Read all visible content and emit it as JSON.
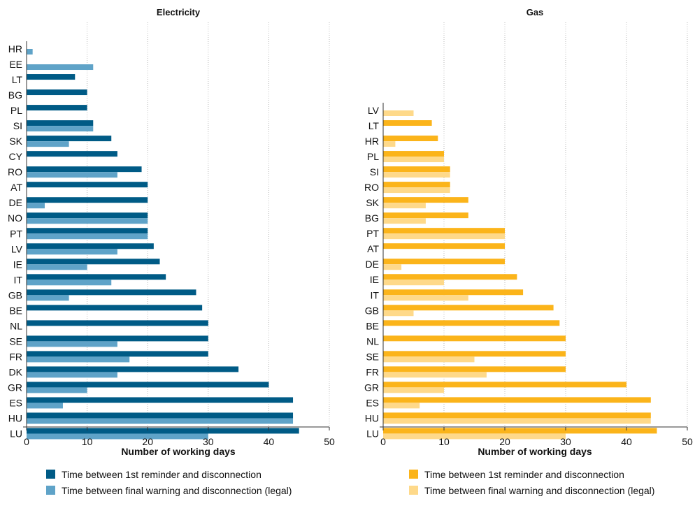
{
  "colors": {
    "electricity_reminder": "#005b86",
    "electricity_legal": "#5fa3c8",
    "gas_reminder": "#fbb41a",
    "gas_legal": "#fed98a",
    "grid": "#bbbbbb",
    "axis": "#333333",
    "text": "#111111"
  },
  "chart_data": [
    {
      "type": "bar",
      "orientation": "horizontal",
      "title": "Electricity",
      "xlabel": "Number of working days",
      "ylabel": "",
      "xlim": [
        0,
        50
      ],
      "xticks": [
        0,
        10,
        20,
        30,
        40,
        50
      ],
      "grid": "vertical dotted",
      "legend_position": "bottom",
      "categories": [
        "HR",
        "EE",
        "LT",
        "BG",
        "PL",
        "SI",
        "SK",
        "CY",
        "RO",
        "AT",
        "DE",
        "NO",
        "PT",
        "LV",
        "IE",
        "IT",
        "GB",
        "BE",
        "NL",
        "SE",
        "FR",
        "DK",
        "GR",
        "ES",
        "HU",
        "LU"
      ],
      "series": [
        {
          "name": "Time between 1st reminder and disconnection",
          "color_key": "electricity_reminder",
          "values": [
            null,
            null,
            8,
            10,
            10,
            11,
            14,
            15,
            19,
            20,
            20,
            20,
            20,
            21,
            22,
            23,
            28,
            29,
            30,
            30,
            30,
            35,
            40,
            44,
            44,
            45
          ]
        },
        {
          "name": "Time between final warning and disconnection (legal)",
          "color_key": "electricity_legal",
          "values": [
            1,
            11,
            null,
            null,
            null,
            11,
            7,
            null,
            15,
            null,
            3,
            20,
            20,
            15,
            10,
            14,
            7,
            null,
            null,
            15,
            17,
            15,
            10,
            6,
            44,
            30
          ]
        }
      ]
    },
    {
      "type": "bar",
      "orientation": "horizontal",
      "title": "Gas",
      "xlabel": "Number of working days",
      "ylabel": "",
      "xlim": [
        0,
        50
      ],
      "xticks": [
        0,
        10,
        20,
        30,
        40,
        50
      ],
      "grid": "vertical dotted",
      "legend_position": "bottom",
      "categories": [
        "LV",
        "LT",
        "HR",
        "PL",
        "SI",
        "RO",
        "SK",
        "BG",
        "PT",
        "AT",
        "DE",
        "IE",
        "IT",
        "GB",
        "BE",
        "NL",
        "SE",
        "FR",
        "GR",
        "ES",
        "HU",
        "LU"
      ],
      "series": [
        {
          "name": "Time between 1st reminder and disconnection",
          "color_key": "gas_reminder",
          "values": [
            null,
            8,
            9,
            10,
            11,
            11,
            14,
            14,
            20,
            20,
            20,
            22,
            23,
            28,
            29,
            30,
            30,
            30,
            40,
            44,
            44,
            45
          ]
        },
        {
          "name": "Time between final warning and disconnection (legal)",
          "color_key": "gas_legal",
          "values": [
            5,
            null,
            2,
            10,
            11,
            11,
            7,
            7,
            20,
            null,
            3,
            10,
            14,
            5,
            null,
            null,
            15,
            17,
            10,
            6,
            44,
            30
          ]
        }
      ]
    }
  ]
}
